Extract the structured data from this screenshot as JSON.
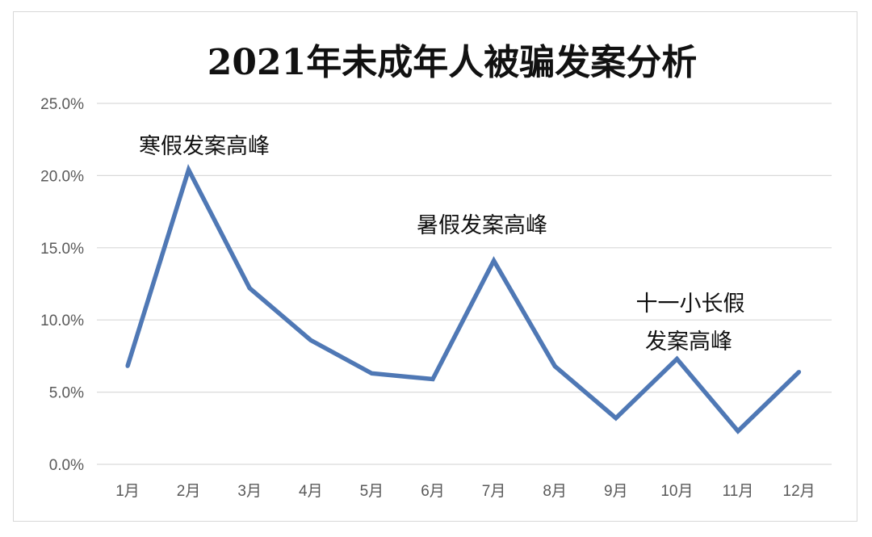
{
  "chart_data": {
    "type": "line",
    "title": "2021年未成年人被骗发案分析",
    "categories": [
      "1月",
      "2月",
      "3月",
      "4月",
      "5月",
      "6月",
      "7月",
      "8月",
      "9月",
      "10月",
      "11月",
      "12月"
    ],
    "series": [
      {
        "values": [
          6.8,
          20.4,
          12.2,
          8.6,
          6.3,
          5.9,
          14.1,
          6.8,
          3.2,
          7.3,
          2.3,
          6.4
        ]
      }
    ],
    "ylim": [
      0,
      25
    ],
    "yticks": [
      "0.0%",
      "5.0%",
      "10.0%",
      "15.0%",
      "20.0%",
      "25.0%"
    ],
    "grid": true,
    "line_color": "#4f78b5",
    "annotations": [
      {
        "text": "寒假发案高峰",
        "category": "2月"
      },
      {
        "text": "暑假发案高峰",
        "category": "7月"
      },
      {
        "text": "十一小长假",
        "category": "10月"
      },
      {
        "text": "发案高峰",
        "category": "10月"
      }
    ]
  }
}
